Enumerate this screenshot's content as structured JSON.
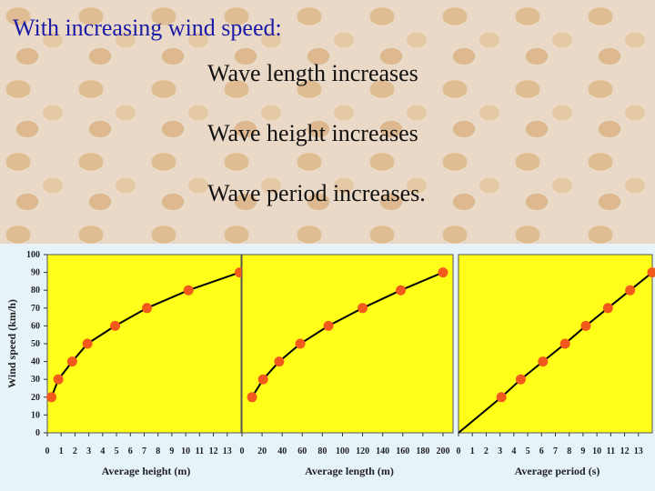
{
  "slide": {
    "title": "With increasing wind speed:",
    "bullets": [
      "Wave length increases",
      "Wave height increases",
      "Wave period increases."
    ]
  },
  "colors": {
    "title": "#1a1aa6",
    "plot_bg": "#ffff1a",
    "marker": "#f25a1c",
    "line": "#000000"
  },
  "chart_data": [
    {
      "type": "line",
      "title": "",
      "xlabel": "Average height (m)",
      "ylabel": "Wind speed (km/h)",
      "xlim": [
        0,
        14
      ],
      "ylim": [
        0,
        100
      ],
      "xticks": [
        0,
        1,
        2,
        3,
        4,
        5,
        6,
        7,
        8,
        9,
        10,
        11,
        12,
        13
      ],
      "yticks": [
        0,
        10,
        20,
        30,
        40,
        50,
        60,
        70,
        80,
        90,
        100
      ],
      "grid": false,
      "points": [
        {
          "x": 0.3,
          "y": 20
        },
        {
          "x": 0.8,
          "y": 30
        },
        {
          "x": 1.8,
          "y": 40
        },
        {
          "x": 2.9,
          "y": 50
        },
        {
          "x": 4.9,
          "y": 60
        },
        {
          "x": 7.2,
          "y": 70
        },
        {
          "x": 10.2,
          "y": 80
        },
        {
          "x": 13.9,
          "y": 90
        }
      ]
    },
    {
      "type": "line",
      "title": "",
      "xlabel": "Average length (m)",
      "ylabel": "",
      "xlim": [
        0,
        210
      ],
      "ylim": [
        0,
        100
      ],
      "xticks": [
        0,
        20,
        40,
        60,
        80,
        100,
        120,
        140,
        160,
        180,
        200
      ],
      "grid": false,
      "points": [
        {
          "x": 10,
          "y": 20
        },
        {
          "x": 21,
          "y": 30
        },
        {
          "x": 37,
          "y": 40
        },
        {
          "x": 58,
          "y": 50
        },
        {
          "x": 86,
          "y": 60
        },
        {
          "x": 120,
          "y": 70
        },
        {
          "x": 158,
          "y": 80
        },
        {
          "x": 200,
          "y": 90
        }
      ]
    },
    {
      "type": "line",
      "title": "",
      "xlabel": "Average period (s)",
      "ylabel": "",
      "xlim": [
        0,
        14
      ],
      "ylim": [
        0,
        100
      ],
      "xticks": [
        0,
        1,
        2,
        3,
        4,
        5,
        6,
        7,
        8,
        9,
        10,
        11,
        12,
        13
      ],
      "grid": false,
      "line_start": {
        "x": 0,
        "y": 0
      },
      "points": [
        {
          "x": 3.1,
          "y": 20
        },
        {
          "x": 4.5,
          "y": 30
        },
        {
          "x": 6.1,
          "y": 40
        },
        {
          "x": 7.7,
          "y": 50
        },
        {
          "x": 9.2,
          "y": 60
        },
        {
          "x": 10.8,
          "y": 70
        },
        {
          "x": 12.4,
          "y": 80
        },
        {
          "x": 14.0,
          "y": 90
        }
      ]
    }
  ]
}
